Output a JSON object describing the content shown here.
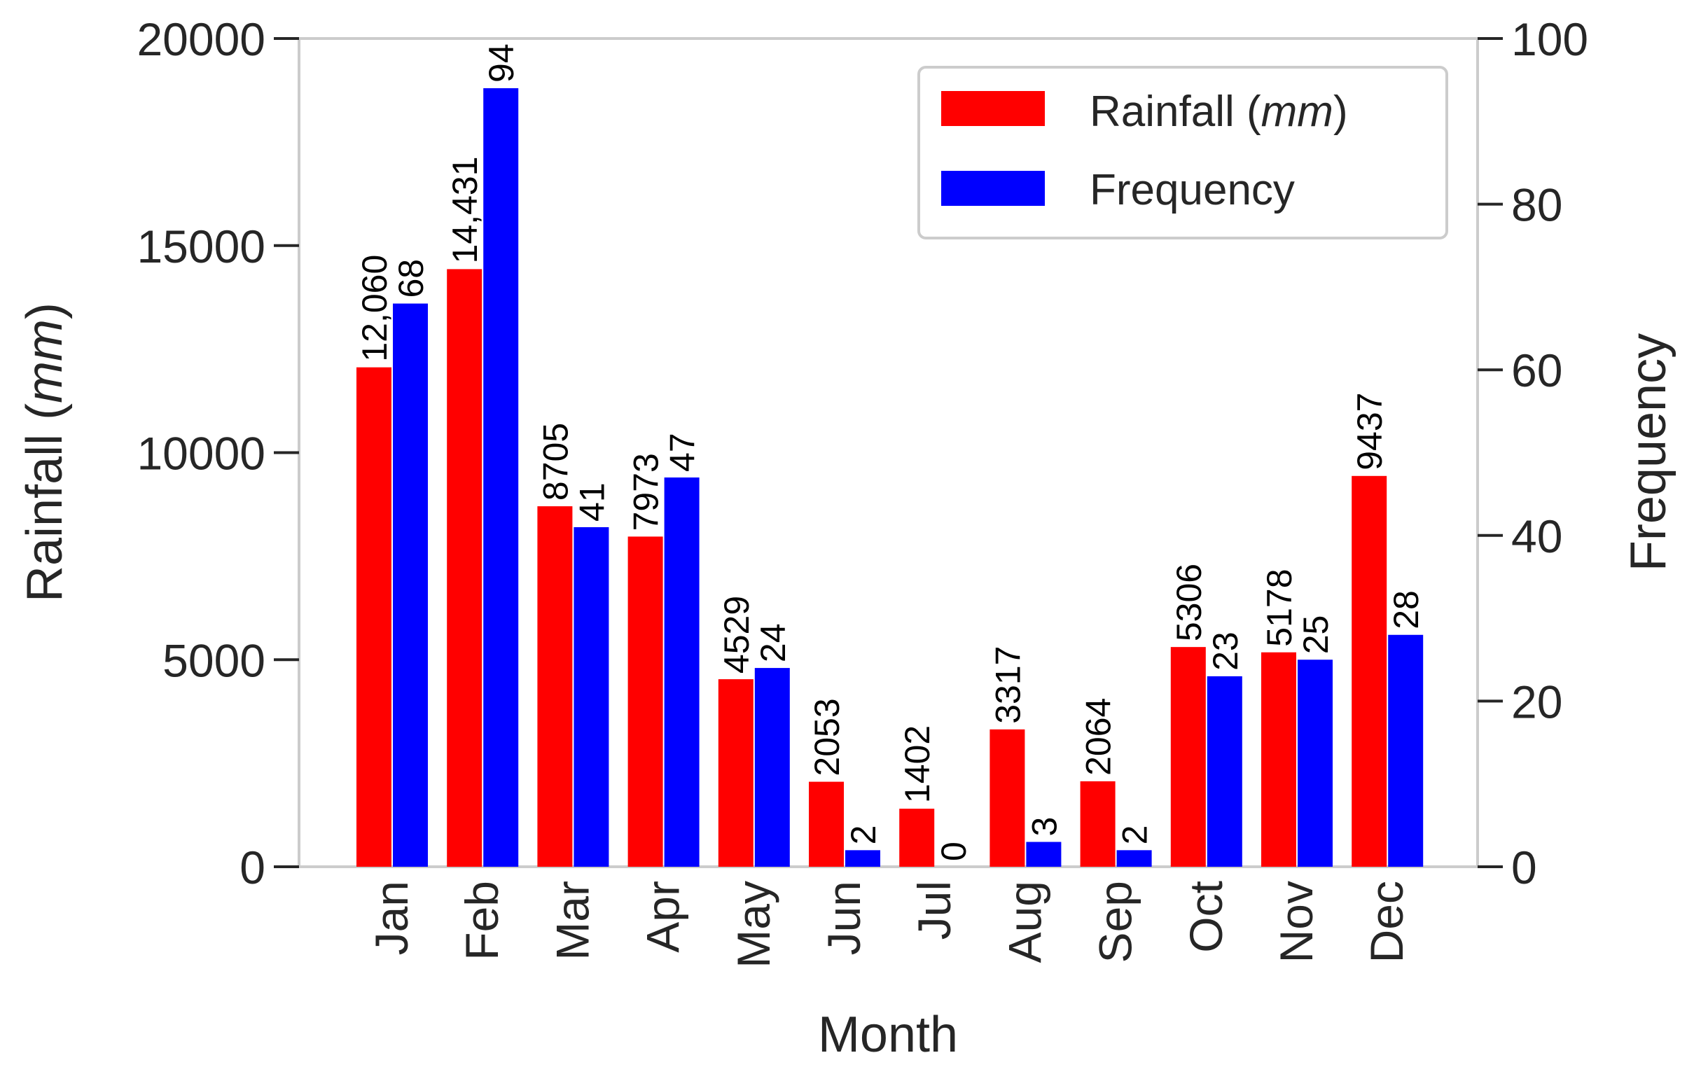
{
  "chart_data": {
    "type": "bar",
    "categories": [
      "Jan",
      "Feb",
      "Mar",
      "Apr",
      "May",
      "Jun",
      "Jul",
      "Aug",
      "Sep",
      "Oct",
      "Nov",
      "Dec"
    ],
    "xlabel": "Month",
    "ylabel_left": {
      "text": "Rainfall (",
      "italic": "mm",
      "close": ")"
    },
    "ylabel_right": "Frequency",
    "ylim_left": [
      0,
      20000
    ],
    "ylim_right": [
      0,
      100
    ],
    "yticks_left": [
      "0",
      "5000",
      "10000",
      "15000",
      "20000"
    ],
    "yticks_right": [
      "0",
      "20",
      "40",
      "60",
      "80",
      "100"
    ],
    "series": [
      {
        "name": "Rainfall (mm)",
        "axis": "left",
        "color": "#ff0000",
        "values": [
          12060,
          14431,
          8705,
          7973,
          4529,
          2053,
          1402,
          3317,
          2064,
          5306,
          5178,
          9437
        ],
        "labels": [
          "12,060",
          "14,431",
          "8705",
          "7973",
          "4529",
          "2053",
          "1402",
          "3317",
          "2064",
          "5306",
          "5178",
          "9437"
        ]
      },
      {
        "name": "Frequency",
        "axis": "right",
        "color": "#0000ff",
        "values": [
          68,
          94,
          41,
          47,
          24,
          2,
          0,
          3,
          2,
          23,
          25,
          28
        ],
        "labels": [
          "68",
          "94",
          "41",
          "47",
          "24",
          "2",
          "0",
          "3",
          "2",
          "23",
          "25",
          "28"
        ]
      }
    ],
    "legend": {
      "position": "top-right",
      "items": [
        {
          "text": "Rainfall (",
          "italic": "mm",
          "close": ")",
          "color": "#ff0000"
        },
        {
          "text": "Frequency",
          "italic": "",
          "close": "",
          "color": "#0000ff"
        }
      ]
    },
    "grid": false
  }
}
